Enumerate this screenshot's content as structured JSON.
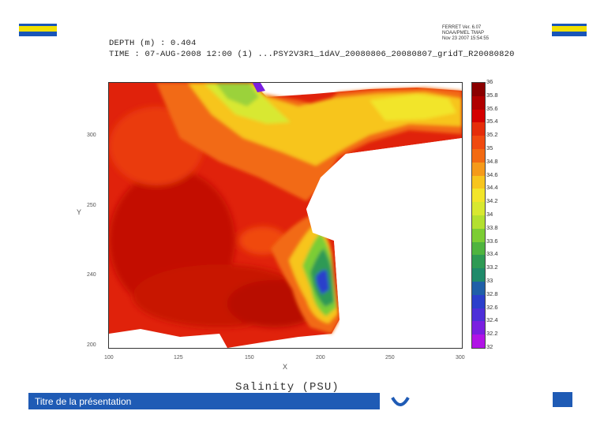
{
  "header": {
    "line1": "DEPTH (m) : 0.404",
    "line2": "TIME : 07-AUG-2008 12:00 (1)  ...PSY2V3R1_1dAV_20080806_20080807_gridT_R20080820"
  },
  "ferret": {
    "line1": "FERRET Ver. 6.07",
    "line2": "NOAA/PMEL TMAP",
    "line3": "Nov 23 2007 15:54:55"
  },
  "axes": {
    "x_label": "X",
    "y_label": "Y",
    "x_ticks": [
      "100",
      "125",
      "150",
      "200",
      "250",
      "300"
    ],
    "y_ticks": [
      "300",
      "250",
      "240",
      "200"
    ]
  },
  "colorbar": {
    "labels": [
      "36",
      "35.8",
      "35.6",
      "35.4",
      "35.2",
      "35",
      "34.8",
      "34.6",
      "34.4",
      "34.2",
      "34",
      "33.8",
      "33.6",
      "33.4",
      "33.2",
      "33",
      "32.8",
      "32.6",
      "32.4",
      "32.2",
      "32"
    ],
    "colors": [
      "#8b0000",
      "#b00000",
      "#d40000",
      "#e52d0a",
      "#f04a10",
      "#f26a12",
      "#f59a1a",
      "#f7c51e",
      "#f2e52a",
      "#d8e830",
      "#b3e02f",
      "#7ccd34",
      "#4fb43f",
      "#2e9a54",
      "#1f8a6a",
      "#1f5fa8",
      "#2b3fcb",
      "#4d2fd8",
      "#7a1fe0",
      "#b114e6"
    ]
  },
  "variable_label": "Salinity (PSU)",
  "footer": {
    "title": "Titre de la présentation"
  }
}
